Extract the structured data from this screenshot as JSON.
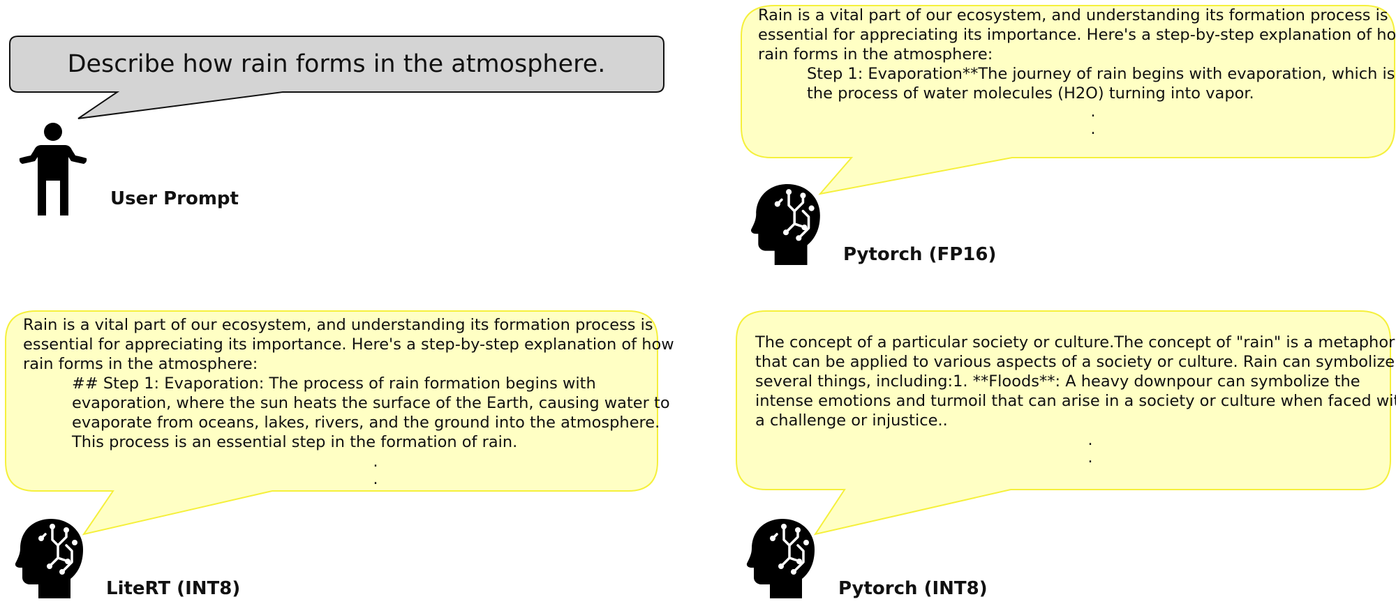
{
  "user": {
    "prompt": "Describe how rain forms in the atmosphere.",
    "label": "User Prompt"
  },
  "responses": {
    "fp16": {
      "label": "Pytorch (FP16)",
      "lines": [
        "Rain is a vital part of our ecosystem, and understanding its formation process is",
        "essential for appreciating its importance. Here's a step-by-step explanation of how",
        "rain forms in the atmosphere:"
      ],
      "indented": [
        "Step 1: Evaporation**The journey of rain begins with evaporation, which is",
        "the process of water molecules (H2O) turning into vapor."
      ],
      "ellipsis": [
        ".",
        "."
      ]
    },
    "litert": {
      "label": "LiteRT (INT8)",
      "lines": [
        "Rain is a vital part of our ecosystem, and understanding its formation process is",
        "essential for appreciating its importance. Here's a step-by-step explanation of how",
        "rain forms in the atmosphere:"
      ],
      "indented": [
        "## Step 1: Evaporation: The process of rain formation begins with",
        "evaporation, where the sun heats the surface of the Earth, causing water to",
        "evaporate from oceans, lakes, rivers, and the ground into the atmosphere.",
        "This process is an essential step in the formation of rain."
      ],
      "ellipsis": [
        ".",
        "."
      ]
    },
    "int8": {
      "label": "Pytorch (INT8)",
      "lines": [
        "The concept of a particular society or culture.The concept of \"rain\" is a metaphor",
        "that can be applied to various aspects of a society or culture. Rain can symbolize",
        "several things, including:1. **Floods**: A heavy downpour can symbolize the",
        "intense emotions and turmoil that can arise in a society or culture when faced with",
        "a challenge or injustice.."
      ],
      "ellipsis": [
        ".",
        "."
      ]
    }
  },
  "colors": {
    "user_bubble_fill": "#d4d4d4",
    "user_bubble_stroke": "#111111",
    "response_bubble_fill": "#ffffc4",
    "response_bubble_stroke": "#f5f03c"
  },
  "icons": {
    "user": "person-icon",
    "model": "ai-head-icon"
  }
}
